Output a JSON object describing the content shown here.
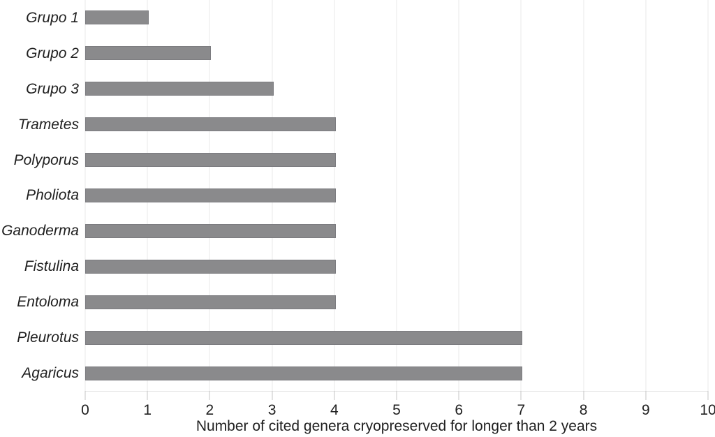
{
  "chart_data": {
    "type": "bar",
    "orientation": "horizontal",
    "title": "",
    "xlabel": "Number of cited genera cryopreserved for longer than 2 years",
    "ylabel": "",
    "categories": [
      "Grupo 1",
      "Grupo 2",
      "Grupo 3",
      "Trametes",
      "Polyporus",
      "Pholiota",
      "Ganoderma",
      "Fistulina",
      "Entoloma",
      "Pleurotus",
      "Agaricus"
    ],
    "values": [
      1,
      2,
      3,
      4,
      4,
      4,
      4,
      4,
      4,
      7,
      7
    ],
    "xlim": [
      0,
      10
    ],
    "xticks": [
      "0",
      "1",
      "2",
      "3",
      "4",
      "5",
      "6",
      "7",
      "8",
      "9",
      "10"
    ],
    "grid": "vertical gridlines at every x tick",
    "legend": "none",
    "category_label_style": "italic",
    "colors": {
      "bar": "#8a8a8c",
      "bar_border": "#7c7c80",
      "gridline": "#e9e9e9",
      "tick": "#c6c6c6",
      "axis_line": "#e4e4e4",
      "text": "#1f1f1f",
      "background": "#ffffff"
    }
  }
}
